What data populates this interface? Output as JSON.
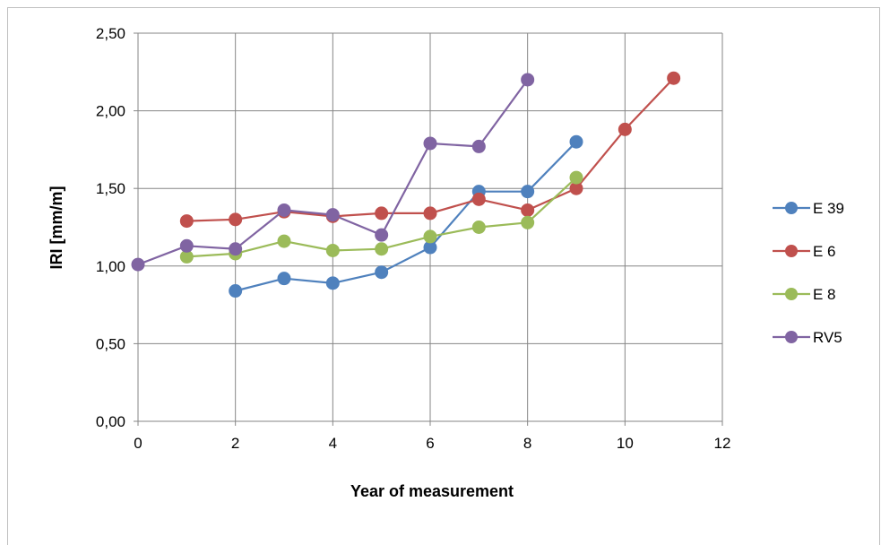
{
  "chart_data": {
    "type": "line",
    "xlabel": "Year of measurement",
    "ylabel": "IRI [mm/m]",
    "xlim": [
      0,
      12
    ],
    "ylim": [
      0,
      2.5
    ],
    "xticks": [
      "0",
      "2",
      "4",
      "6",
      "8",
      "10",
      "12"
    ],
    "yticks": [
      "0,00",
      "0,50",
      "1,00",
      "1,50",
      "2,00",
      "2,50"
    ],
    "grid": true,
    "legend_position": "right",
    "series": [
      {
        "name": "E 39",
        "color": "#4f81bd",
        "x": [
          2,
          3,
          4,
          5,
          6,
          7,
          8,
          9
        ],
        "y": [
          0.84,
          0.92,
          0.89,
          0.96,
          1.12,
          1.48,
          1.48,
          1.8
        ]
      },
      {
        "name": "E 6",
        "color": "#c0504d",
        "x": [
          1,
          2,
          3,
          4,
          5,
          6,
          7,
          8,
          9,
          10,
          11
        ],
        "y": [
          1.29,
          1.3,
          1.35,
          1.32,
          1.34,
          1.34,
          1.43,
          1.36,
          1.5,
          1.88,
          2.21
        ]
      },
      {
        "name": "E 8",
        "color": "#9bbb59",
        "x": [
          1,
          2,
          3,
          4,
          5,
          6,
          7,
          8,
          9
        ],
        "y": [
          1.06,
          1.08,
          1.16,
          1.1,
          1.11,
          1.19,
          1.25,
          1.28,
          1.57
        ]
      },
      {
        "name": "RV5",
        "color": "#8064a2",
        "x": [
          0,
          1,
          2,
          3,
          4,
          5,
          6,
          7,
          8
        ],
        "y": [
          1.01,
          1.13,
          1.11,
          1.36,
          1.33,
          1.2,
          1.79,
          1.77,
          2.2
        ]
      }
    ]
  }
}
